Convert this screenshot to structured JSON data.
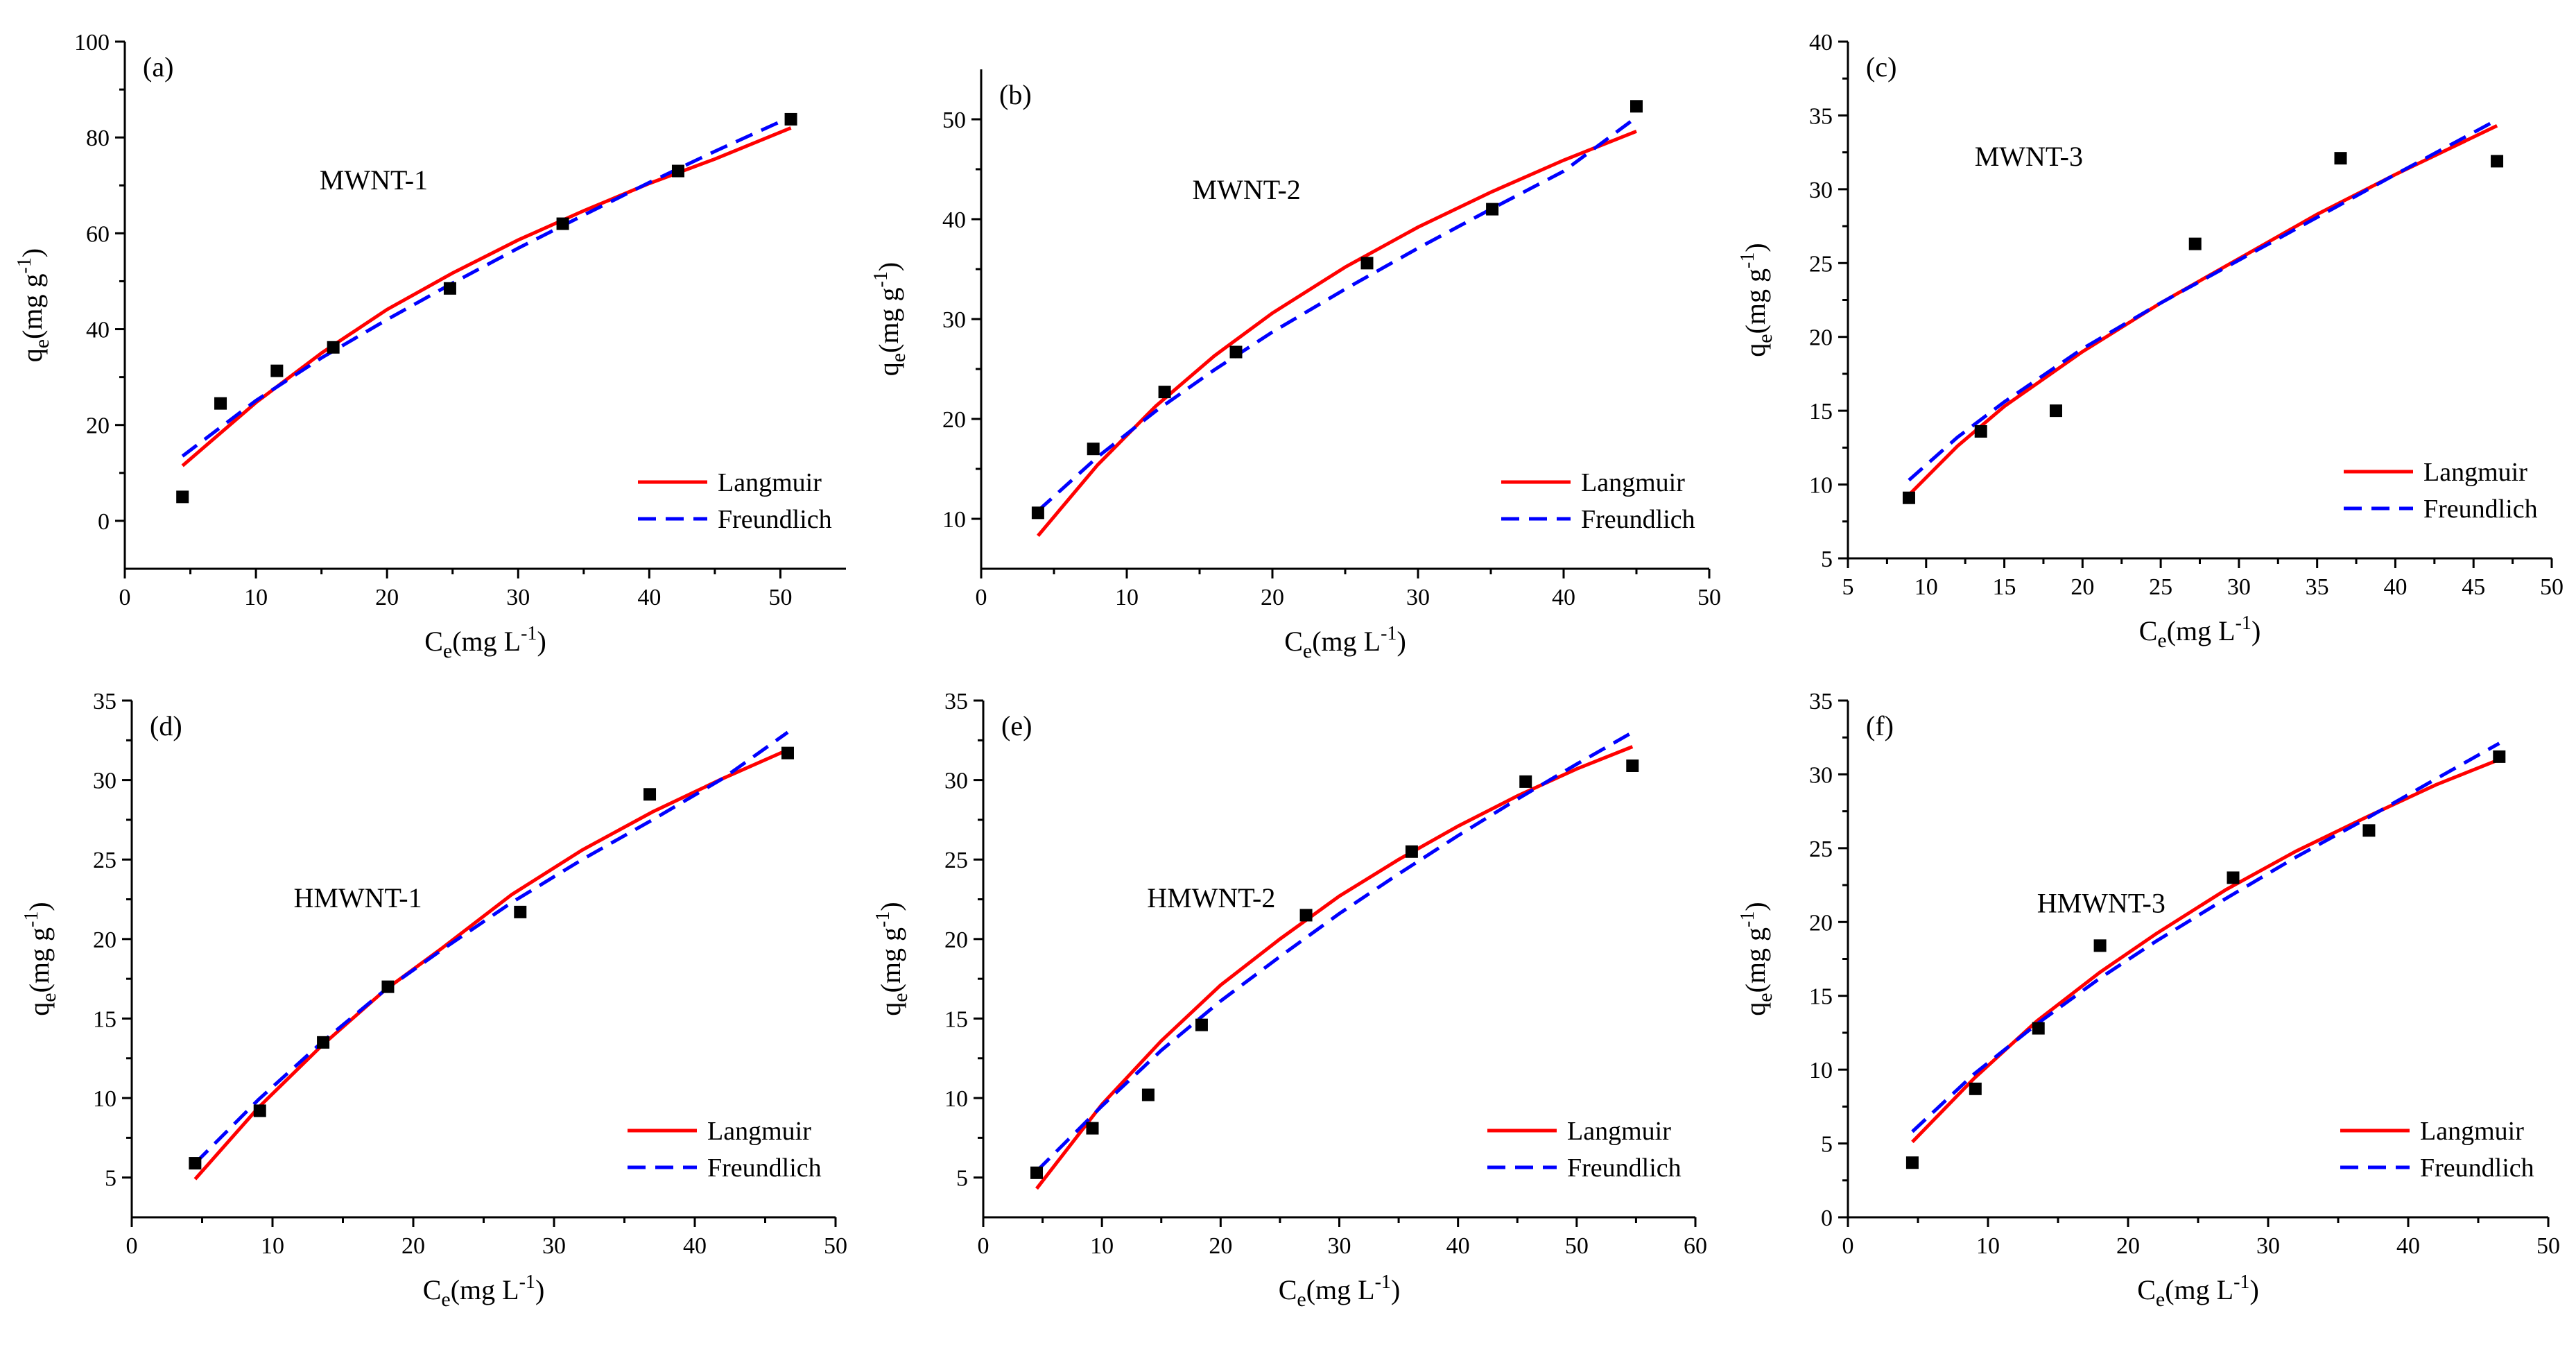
{
  "colors": {
    "langmuir": "#ff0000",
    "freundlich": "#0000ff",
    "points": "#000000",
    "axis": "#000000"
  },
  "chart_data": [
    {
      "type": "scatter",
      "panel": "(a)",
      "sample": "MWNT-1",
      "xlabel": "Ce(mg L-1)",
      "ylabel": "qe(mg g-1)",
      "xlim": [
        0,
        55
      ],
      "ylim": [
        -10,
        100
      ],
      "xticks": [
        0,
        10,
        20,
        30,
        40,
        50
      ],
      "yticks": [
        0,
        20,
        40,
        60,
        80,
        100
      ],
      "legend": [
        "Langmuir",
        "Freundlich"
      ],
      "legend_position": "bottom-right",
      "points": {
        "x": [
          4.4,
          7.3,
          11.6,
          15.9,
          24.8,
          33.4,
          42.2,
          50.8
        ],
        "y": [
          5.0,
          24.5,
          31.3,
          36.2,
          48.5,
          62.0,
          73.0,
          83.8
        ]
      },
      "series": [
        {
          "name": "Langmuir",
          "x": [
            4.4,
            10,
            15,
            20,
            25,
            30,
            35,
            40,
            45,
            50.8
          ],
          "y": [
            11.5,
            24.7,
            35.0,
            44.1,
            51.7,
            58.6,
            64.7,
            70.4,
            75.5,
            82.0
          ]
        },
        {
          "name": "Freundlich",
          "x": [
            4.4,
            10,
            15,
            20,
            25,
            30,
            35,
            40,
            45,
            50.8
          ],
          "y": [
            13.5,
            25.1,
            34.0,
            42.0,
            49.6,
            56.9,
            63.8,
            70.6,
            77.1,
            84.3
          ]
        }
      ]
    },
    {
      "type": "scatter",
      "panel": "(b)",
      "sample": "MWNT-2",
      "xlabel": "Ce(mg L-1)",
      "ylabel": "qe(mg g-1)",
      "xlim": [
        0,
        50
      ],
      "ylim": [
        5,
        55
      ],
      "xticks": [
        0,
        10,
        20,
        30,
        40,
        50
      ],
      "yticks": [
        10,
        20,
        30,
        40,
        50
      ],
      "legend": [
        "Langmuir",
        "Freundlich"
      ],
      "legend_position": "bottom-right",
      "points": {
        "x": [
          3.9,
          7.7,
          12.6,
          17.5,
          26.5,
          35.1,
          45.0
        ],
        "y": [
          10.6,
          17.0,
          22.7,
          26.7,
          35.6,
          41.0,
          51.3
        ]
      },
      "series": [
        {
          "name": "Langmuir",
          "x": [
            3.9,
            8,
            12,
            16,
            20,
            25,
            30,
            35,
            40,
            45
          ],
          "y": [
            8.3,
            15.4,
            21.3,
            26.3,
            30.6,
            35.2,
            39.2,
            42.7,
            45.9,
            48.8
          ]
        },
        {
          "name": "Freundlich",
          "x": [
            3.9,
            8,
            12,
            16,
            20,
            25,
            30,
            35,
            40,
            45
          ],
          "y": [
            10.8,
            16.2,
            20.8,
            24.9,
            28.7,
            33.0,
            37.1,
            41.0,
            44.8,
            50.2
          ]
        }
      ]
    },
    {
      "type": "scatter",
      "panel": "(c)",
      "sample": "MWNT-3",
      "xlabel": "Ce(mg L-1)",
      "ylabel": "qe(mg g-1)",
      "xlim": [
        5,
        50
      ],
      "ylim": [
        5,
        40
      ],
      "xticks": [
        5,
        10,
        15,
        20,
        25,
        30,
        35,
        40,
        45,
        50
      ],
      "yticks": [
        5,
        10,
        15,
        20,
        25,
        30,
        35,
        40
      ],
      "legend": [
        "Langmuir",
        "Freundlich"
      ],
      "legend_position": "bottom-right",
      "points": {
        "x": [
          8.9,
          13.5,
          18.3,
          27.2,
          36.5,
          46.5
        ],
        "y": [
          9.1,
          13.6,
          15.0,
          26.3,
          32.1,
          31.9
        ]
      },
      "series": [
        {
          "name": "Langmuir",
          "x": [
            8.9,
            12,
            15,
            20,
            25,
            30,
            35,
            40,
            46.5
          ],
          "y": [
            9.3,
            12.6,
            15.3,
            19.0,
            22.3,
            25.3,
            28.3,
            31.0,
            34.3
          ]
        },
        {
          "name": "Freundlich",
          "x": [
            8.9,
            12,
            15,
            20,
            25,
            30,
            35,
            40,
            46.5
          ],
          "y": [
            10.3,
            13.2,
            15.6,
            19.2,
            22.3,
            25.2,
            28.1,
            31.0,
            34.7
          ]
        }
      ]
    },
    {
      "type": "scatter",
      "panel": "(d)",
      "sample": "HMWNT-1",
      "xlabel": "Ce(mg L-1)",
      "ylabel": "qe(mg g-1)",
      "xlim": [
        0,
        50
      ],
      "ylim": [
        2.5,
        35
      ],
      "xticks": [
        0,
        10,
        20,
        30,
        40,
        50
      ],
      "yticks": [
        5,
        10,
        15,
        20,
        25,
        30,
        35
      ],
      "legend": [
        "Langmuir",
        "Freundlich"
      ],
      "legend_position": "bottom-right",
      "points": {
        "x": [
          4.5,
          9.1,
          13.6,
          18.2,
          27.6,
          36.8,
          46.6
        ],
        "y": [
          5.9,
          9.2,
          13.5,
          17.0,
          21.7,
          29.1,
          31.7
        ]
      },
      "series": [
        {
          "name": "Langmuir",
          "x": [
            4.5,
            9,
            13.5,
            18,
            22,
            27,
            32,
            37,
            42,
            46.6
          ],
          "y": [
            4.9,
            9.4,
            13.3,
            16.8,
            19.4,
            22.8,
            25.6,
            28.0,
            30.1,
            31.9
          ]
        },
        {
          "name": "Freundlich",
          "x": [
            4.5,
            9,
            13.5,
            18,
            22,
            27,
            32,
            37,
            42,
            46.6
          ],
          "y": [
            5.9,
            9.9,
            13.5,
            16.8,
            19.3,
            22.3,
            25.0,
            27.5,
            30.1,
            33.0
          ]
        }
      ]
    },
    {
      "type": "scatter",
      "panel": "(e)",
      "sample": "HMWNT-2",
      "xlabel": "Ce(mg L-1)",
      "ylabel": "qe(mg g-1)",
      "xlim": [
        0,
        60
      ],
      "ylim": [
        2.5,
        35
      ],
      "xticks": [
        0,
        10,
        20,
        30,
        40,
        50,
        60
      ],
      "yticks": [
        5,
        10,
        15,
        20,
        25,
        30,
        35
      ],
      "legend": [
        "Langmuir",
        "Freundlich"
      ],
      "legend_position": "bottom-right",
      "points": {
        "x": [
          4.5,
          9.2,
          13.9,
          18.4,
          27.2,
          36.1,
          45.7,
          54.7
        ],
        "y": [
          5.3,
          8.1,
          10.2,
          14.6,
          21.5,
          25.5,
          29.9,
          30.9
        ]
      },
      "series": [
        {
          "name": "Langmuir",
          "x": [
            4.5,
            10,
            15,
            20,
            25,
            30,
            35,
            40,
            45,
            50,
            54.7
          ],
          "y": [
            4.3,
            9.6,
            13.6,
            17.1,
            20.0,
            22.7,
            25.0,
            27.1,
            29.0,
            30.7,
            32.1
          ]
        },
        {
          "name": "Freundlich",
          "x": [
            4.5,
            10,
            15,
            20,
            25,
            30,
            35,
            40,
            45,
            50,
            54.7
          ],
          "y": [
            5.4,
            9.5,
            13.0,
            16.1,
            18.9,
            21.6,
            24.1,
            26.5,
            28.8,
            31.0,
            33.0
          ]
        }
      ]
    },
    {
      "type": "scatter",
      "panel": "(f)",
      "sample": "HMWNT-3",
      "xlabel": "Ce(mg L-1)",
      "ylabel": "qe(mg g-1)",
      "xlim": [
        0,
        50
      ],
      "ylim": [
        0,
        35
      ],
      "xticks": [
        0,
        10,
        20,
        30,
        40,
        50
      ],
      "yticks": [
        0,
        5,
        10,
        15,
        20,
        25,
        30,
        35
      ],
      "legend": [
        "Langmuir",
        "Freundlich"
      ],
      "legend_position": "bottom-right",
      "points": {
        "x": [
          4.6,
          9.1,
          13.6,
          18.0,
          27.5,
          37.2,
          46.5
        ],
        "y": [
          3.7,
          8.7,
          12.8,
          18.4,
          23.0,
          26.2,
          31.2
        ]
      },
      "series": [
        {
          "name": "Langmuir",
          "x": [
            4.6,
            9,
            13.5,
            18,
            22,
            27,
            32,
            37,
            42,
            46.5
          ],
          "y": [
            5.1,
            9.4,
            13.3,
            16.6,
            19.2,
            22.2,
            24.8,
            27.1,
            29.3,
            31.0
          ]
        },
        {
          "name": "Freundlich",
          "x": [
            4.6,
            9,
            13.5,
            18,
            22,
            27,
            32,
            37,
            42,
            46.5
          ],
          "y": [
            5.8,
            9.7,
            13.1,
            16.2,
            18.7,
            21.6,
            24.4,
            27.0,
            29.7,
            32.1
          ]
        }
      ]
    }
  ]
}
